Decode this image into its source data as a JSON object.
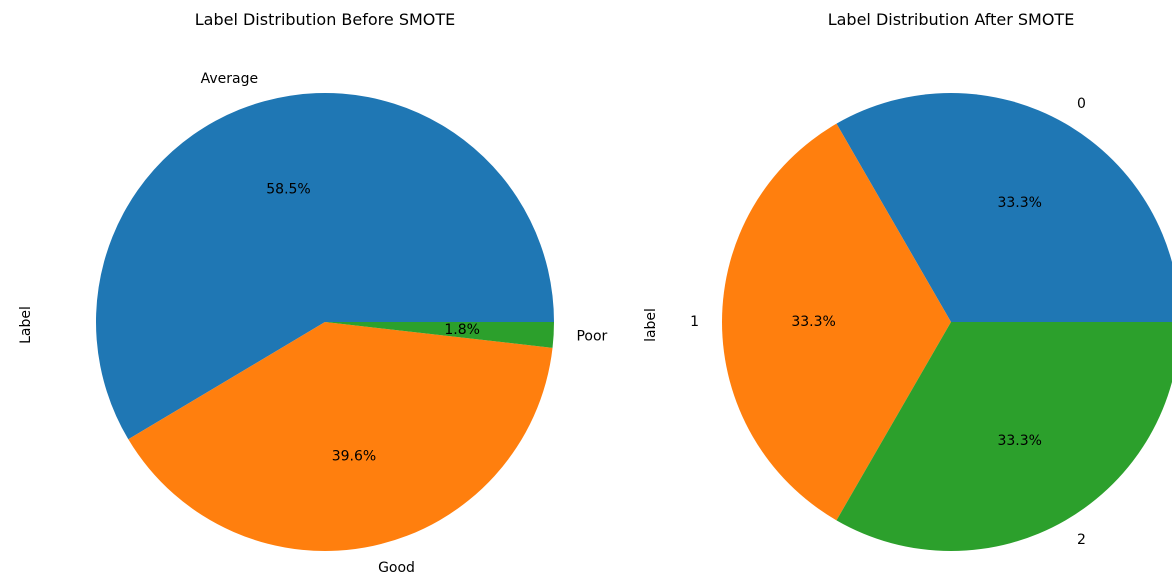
{
  "chart_data": [
    {
      "type": "pie",
      "title": "Label Distribution Before SMOTE",
      "ylabel": "Label",
      "autopct_format": "%.1f%%",
      "start_angle_deg": 0,
      "direction": "counterclockwise",
      "categories": [
        "Average",
        "Good",
        "Poor"
      ],
      "values": [
        58.5,
        39.6,
        1.8
      ],
      "percent_labels": [
        "58.5%",
        "39.6%",
        "1.8%"
      ],
      "colors": [
        "#1f77b4",
        "#ff7f0e",
        "#2ca02c"
      ]
    },
    {
      "type": "pie",
      "title": "Label Distribution After SMOTE",
      "ylabel": "label",
      "autopct_format": "%.1f%%",
      "start_angle_deg": 0,
      "direction": "counterclockwise",
      "categories": [
        "0",
        "1",
        "2"
      ],
      "values": [
        33.3,
        33.3,
        33.3
      ],
      "percent_labels": [
        "33.3%",
        "33.3%",
        "33.3%"
      ],
      "colors": [
        "#1f77b4",
        "#ff7f0e",
        "#2ca02c"
      ]
    }
  ]
}
